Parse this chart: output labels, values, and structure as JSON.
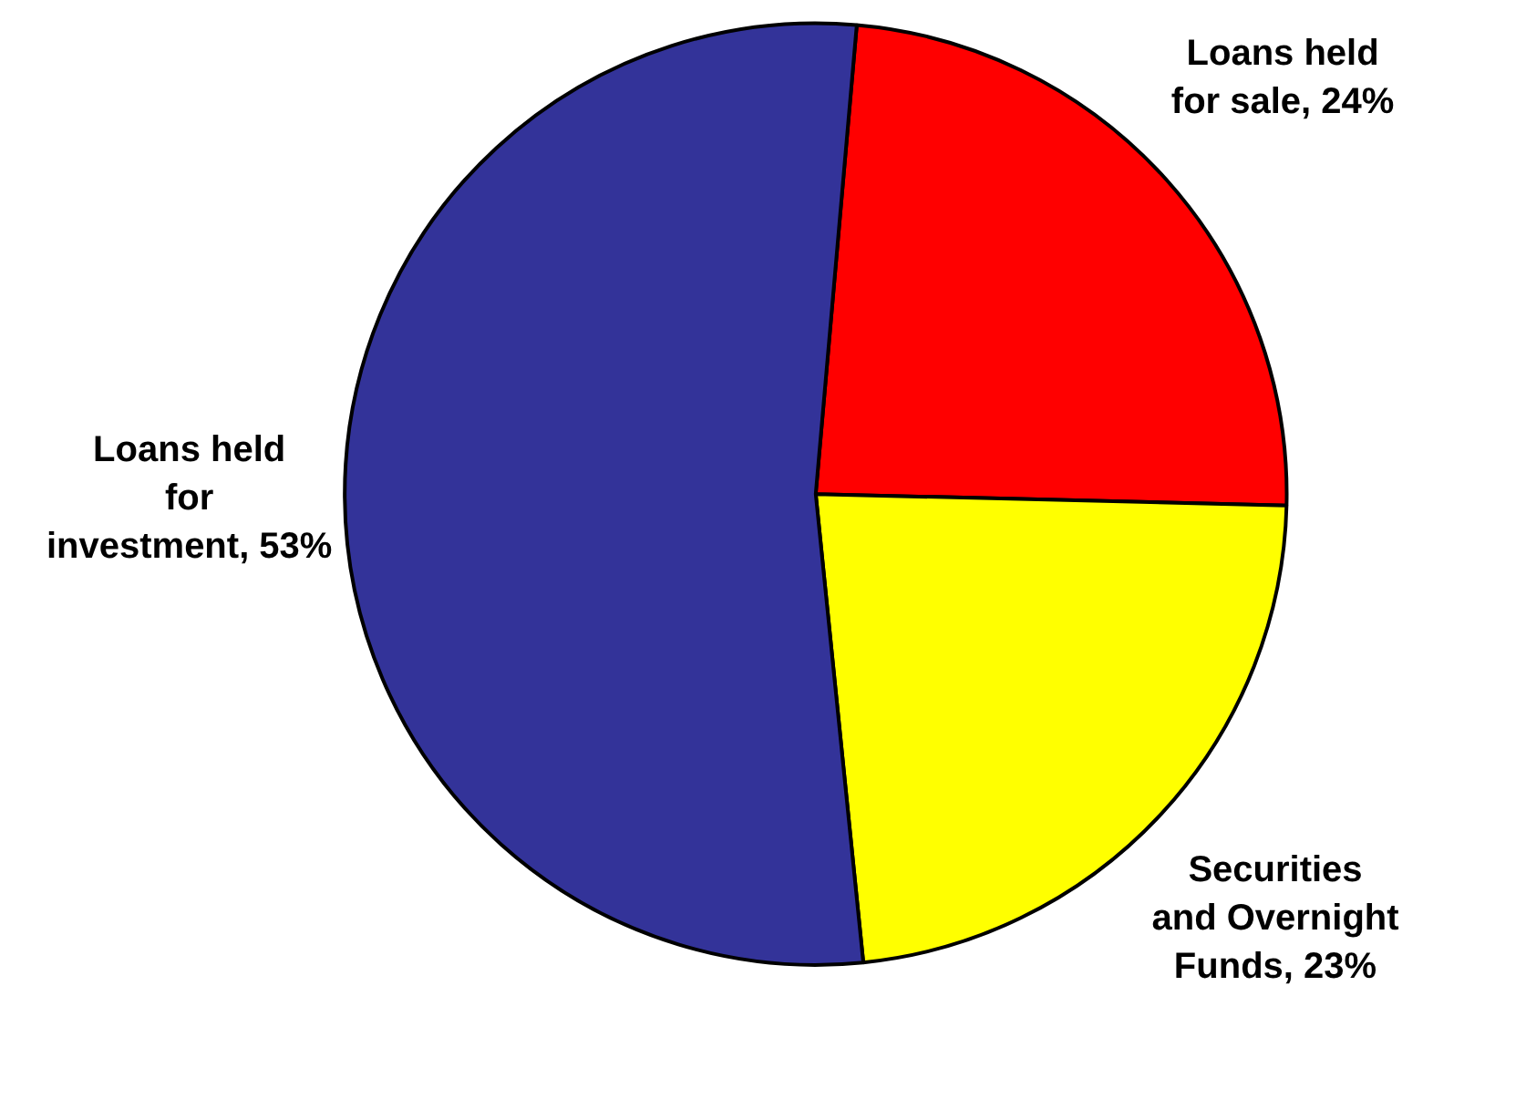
{
  "chart_data": {
    "type": "pie",
    "categories": [
      "Loans held for sale",
      "Securities and Overnight Funds",
      "Loans held for investment"
    ],
    "values": [
      24,
      23,
      53
    ],
    "value_labels": [
      "24%",
      "23%",
      "53%"
    ],
    "colors": [
      "#ff0000",
      "#ffff00",
      "#333399"
    ],
    "legend": false
  }
}
